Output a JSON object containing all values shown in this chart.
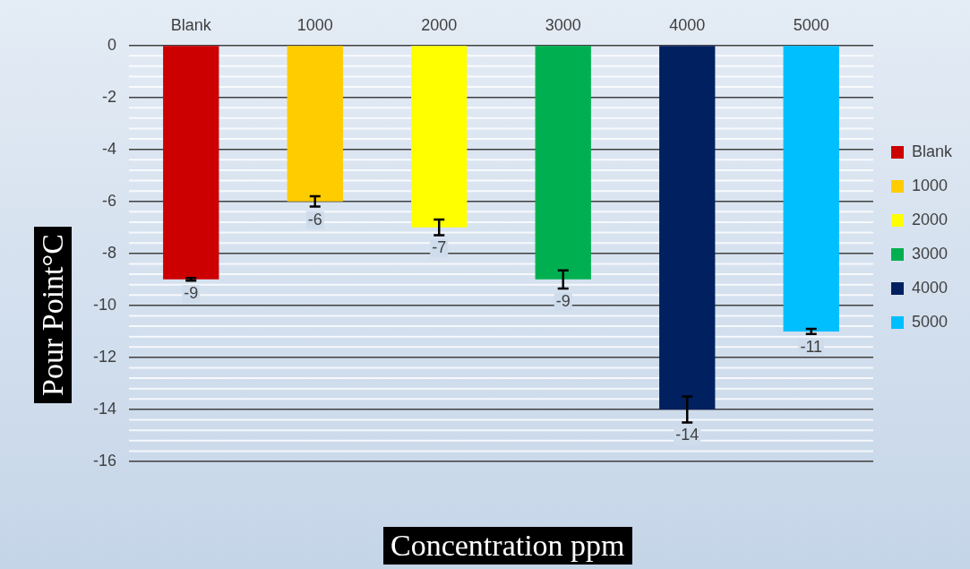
{
  "chart_data": {
    "type": "bar",
    "categories": [
      "Blank",
      "1000",
      "2000",
      "3000",
      "4000",
      "5000"
    ],
    "stacked": true,
    "series": [
      {
        "name": "Blank",
        "color": "#cc0000",
        "values": [
          -9,
          null,
          null,
          null,
          null,
          null
        ],
        "errors": [
          0.05,
          null,
          null,
          null,
          null,
          null
        ]
      },
      {
        "name": "1000",
        "color": "#ffcc00",
        "values": [
          null,
          -6,
          null,
          null,
          null,
          null
        ],
        "errors": [
          null,
          0.2,
          null,
          null,
          null,
          null
        ]
      },
      {
        "name": "2000",
        "color": "#ffff00",
        "values": [
          null,
          null,
          -7,
          null,
          null,
          null
        ],
        "errors": [
          null,
          null,
          0.3,
          null,
          null,
          null
        ]
      },
      {
        "name": "3000",
        "color": "#00b050",
        "values": [
          null,
          null,
          null,
          -9,
          null,
          null
        ],
        "errors": [
          null,
          null,
          null,
          0.35,
          null,
          null
        ]
      },
      {
        "name": "4000",
        "color": "#002060",
        "values": [
          null,
          null,
          null,
          null,
          -14,
          null
        ],
        "errors": [
          null,
          null,
          null,
          null,
          0.5,
          null
        ]
      },
      {
        "name": "5000",
        "color": "#00bfff",
        "values": [
          null,
          null,
          null,
          null,
          null,
          -11
        ],
        "errors": [
          null,
          null,
          null,
          null,
          null,
          0.1
        ]
      }
    ],
    "ylim": [
      -16,
      0
    ],
    "yticks": [
      0,
      -2,
      -4,
      -6,
      -8,
      -10,
      -12,
      -14,
      -16
    ],
    "xlabel": "Concentration ppm",
    "ylabel": "Pour Point°C",
    "grid": "y",
    "legend": "right",
    "data_labels": true
  }
}
